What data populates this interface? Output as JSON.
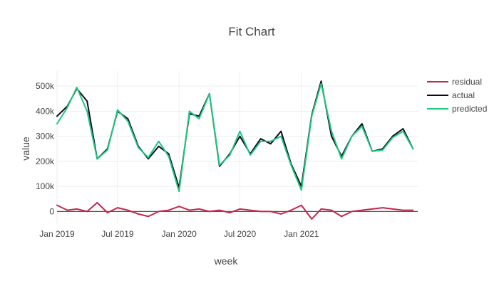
{
  "chart_data": {
    "type": "line",
    "title": "Fit Chart",
    "xlabel": "week",
    "ylabel": "value",
    "ylim": [
      -50000,
      560000
    ],
    "xlim": [
      "2019-01-01",
      "2021-12-15"
    ],
    "y_ticks": [
      {
        "value": 0,
        "label": "0"
      },
      {
        "value": 100000,
        "label": "100k"
      },
      {
        "value": 200000,
        "label": "200k"
      },
      {
        "value": 300000,
        "label": "300k"
      },
      {
        "value": 400000,
        "label": "400k"
      },
      {
        "value": 500000,
        "label": "500k"
      }
    ],
    "x_ticks": [
      {
        "value": "2019-01-01",
        "label": "Jan 2019"
      },
      {
        "value": "2019-07-01",
        "label": "Jul 2019"
      },
      {
        "value": "2020-01-01",
        "label": "Jan 2020"
      },
      {
        "value": "2020-07-01",
        "label": "Jul 2020"
      },
      {
        "value": "2021-01-01",
        "label": "Jan 2021"
      }
    ],
    "grid": true,
    "legend_position": "top-right",
    "series": [
      {
        "name": "residual",
        "color": "#c7254e",
        "x": [
          "2019-01-01",
          "2019-02-01",
          "2019-03-01",
          "2019-04-01",
          "2019-05-01",
          "2019-06-01",
          "2019-07-01",
          "2019-08-01",
          "2019-09-01",
          "2019-10-01",
          "2019-11-01",
          "2019-12-01",
          "2020-01-01",
          "2020-02-01",
          "2020-03-01",
          "2020-04-01",
          "2020-05-01",
          "2020-06-01",
          "2020-07-01",
          "2020-08-01",
          "2020-09-01",
          "2020-10-01",
          "2020-11-01",
          "2020-12-01",
          "2021-01-01",
          "2021-02-01",
          "2021-03-01",
          "2021-04-01",
          "2021-05-01",
          "2021-06-01",
          "2021-07-01",
          "2021-08-01",
          "2021-09-01",
          "2021-10-01",
          "2021-11-01",
          "2021-12-01"
        ],
        "values": [
          25000,
          5000,
          10000,
          0,
          35000,
          -5000,
          15000,
          5000,
          -10000,
          -20000,
          0,
          5000,
          20000,
          5000,
          10000,
          0,
          5000,
          -5000,
          10000,
          5000,
          0,
          0,
          -10000,
          5000,
          25000,
          -30000,
          10000,
          5000,
          -20000,
          0,
          5000,
          10000,
          15000,
          10000,
          5000,
          5000
        ]
      },
      {
        "name": "actual",
        "color": "#0d0a1f",
        "x": [
          "2019-01-01",
          "2019-02-01",
          "2019-03-01",
          "2019-04-01",
          "2019-05-01",
          "2019-06-01",
          "2019-07-01",
          "2019-08-01",
          "2019-09-01",
          "2019-10-01",
          "2019-11-01",
          "2019-12-01",
          "2020-01-01",
          "2020-02-01",
          "2020-03-01",
          "2020-04-01",
          "2020-05-01",
          "2020-06-01",
          "2020-07-01",
          "2020-08-01",
          "2020-09-01",
          "2020-10-01",
          "2020-11-01",
          "2020-12-01",
          "2021-01-01",
          "2021-02-01",
          "2021-03-01",
          "2021-04-01",
          "2021-05-01",
          "2021-06-01",
          "2021-07-01",
          "2021-08-01",
          "2021-09-01",
          "2021-10-01",
          "2021-11-01",
          "2021-12-01"
        ],
        "values": [
          380000,
          420000,
          490000,
          440000,
          210000,
          250000,
          400000,
          370000,
          260000,
          210000,
          260000,
          230000,
          95000,
          390000,
          380000,
          470000,
          180000,
          230000,
          300000,
          230000,
          290000,
          270000,
          320000,
          190000,
          100000,
          385000,
          520000,
          300000,
          220000,
          300000,
          350000,
          240000,
          250000,
          300000,
          330000,
          250000
        ]
      },
      {
        "name": "predicted",
        "color": "#1ec77e",
        "x": [
          "2019-01-01",
          "2019-02-01",
          "2019-03-01",
          "2019-04-01",
          "2019-05-01",
          "2019-06-01",
          "2019-07-01",
          "2019-08-01",
          "2019-09-01",
          "2019-10-01",
          "2019-11-01",
          "2019-12-01",
          "2020-01-01",
          "2020-02-01",
          "2020-03-01",
          "2020-04-01",
          "2020-05-01",
          "2020-06-01",
          "2020-07-01",
          "2020-08-01",
          "2020-09-01",
          "2020-10-01",
          "2020-11-01",
          "2020-12-01",
          "2021-01-01",
          "2021-02-01",
          "2021-03-01",
          "2021-04-01",
          "2021-05-01",
          "2021-06-01",
          "2021-07-01",
          "2021-08-01",
          "2021-09-01",
          "2021-10-01",
          "2021-11-01",
          "2021-12-01"
        ],
        "values": [
          350000,
          415000,
          495000,
          400000,
          210000,
          245000,
          405000,
          360000,
          255000,
          215000,
          280000,
          220000,
          80000,
          400000,
          370000,
          470000,
          185000,
          225000,
          320000,
          225000,
          280000,
          280000,
          300000,
          185000,
          85000,
          380000,
          510000,
          320000,
          210000,
          300000,
          340000,
          240000,
          245000,
          295000,
          320000,
          250000
        ]
      }
    ]
  }
}
